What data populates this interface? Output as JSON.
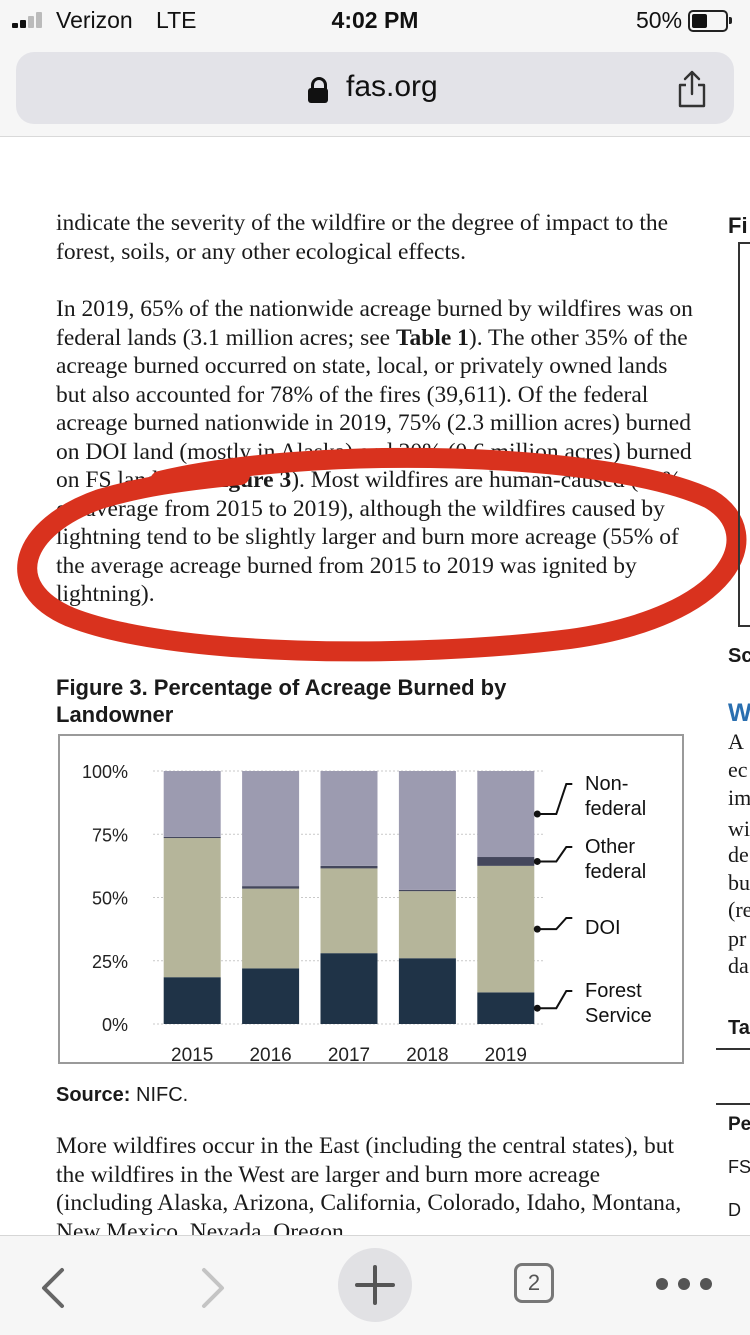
{
  "status_bar": {
    "carrier": "Verizon",
    "network": "LTE",
    "time": "4:02 PM",
    "battery": "50%"
  },
  "browser": {
    "url": "fas.org",
    "tab_count": "2"
  },
  "document": {
    "para1": "indicate the severity of the wildfire or the degree of impact to the forest, soils, or any other ecological effects.",
    "para2_before_bold": "In 2019, 65% of the nationwide acreage burned by wildfires was on federal lands (3.1 million acres; see ",
    "para2_bold": "Table 1",
    "para2_after_bold": "). The other 35% of the acreage burned occurred on state, local, or privately owned lands but also accounted for 78% of the fires (39,611). Of the federal acreage burned nationwide in 2019, 75% (2.3 million acres) burned on DOI land (mostly in Alaska) and 20% (0.6 million acres) burned on FS land (see ",
    "para2_bold2": "Figure 3",
    "para2_end": "). Most wildfires are human-caused (88% on average from 2015 to 2019), although the wildfires caused by lightning tend to be slightly larger and burn more acreage (55% of the average acreage burned from 2015 to 2019 was ignited by lightning).",
    "figure_title": "Figure 3. Percentage of Acreage Burned by Landowner",
    "source_label": "Source:",
    "source_value": " NIFC.",
    "para3": "More wildfires occur in the East (including the central states), but the wildfires in the West are larger and burn more acreage (including Alaska, Arizona, California, Colorado, Idaho, Montana, New Mexico, Nevada, Oregon,"
  },
  "right_column": {
    "fig_label": "Fi",
    "sc_label": "Sc",
    "w_label": "W",
    "lines": [
      "A",
      "ec",
      "im",
      "wi",
      "de",
      "bu",
      "(re",
      "pr",
      "da"
    ],
    "ta_label": "Ta",
    "pe_label": "Pe",
    "fs_label": "FS",
    "d_label": "D"
  },
  "colors": {
    "forest_service": "#1f3347",
    "doi": "#b5b59a",
    "other_federal": "#44475c",
    "non_federal": "#9c9bb0",
    "annotation": "#d9321e",
    "heading_blue": "#2a6fb0"
  },
  "chart_data": {
    "type": "bar",
    "stacked": true,
    "categories": [
      "2015",
      "2016",
      "2017",
      "2018",
      "2019"
    ],
    "series": [
      {
        "name": "Forest Service",
        "values": [
          18.5,
          22,
          28,
          26,
          12.5
        ]
      },
      {
        "name": "DOI",
        "values": [
          55,
          31.5,
          33.5,
          26.5,
          50
        ]
      },
      {
        "name": "Other federal",
        "values": [
          0.5,
          1,
          1,
          0.5,
          3.5
        ]
      },
      {
        "name": "Non-federal",
        "values": [
          26,
          45.5,
          37.5,
          47,
          34
        ]
      }
    ],
    "y_ticks": [
      "100%",
      "75%",
      "50%",
      "25%",
      "0%"
    ],
    "legend": [
      "Non-\nfederal",
      "Other\nfederal",
      "DOI",
      "Forest\nService"
    ],
    "ylim": [
      0,
      100
    ],
    "grid": true,
    "legend_position": "right"
  }
}
